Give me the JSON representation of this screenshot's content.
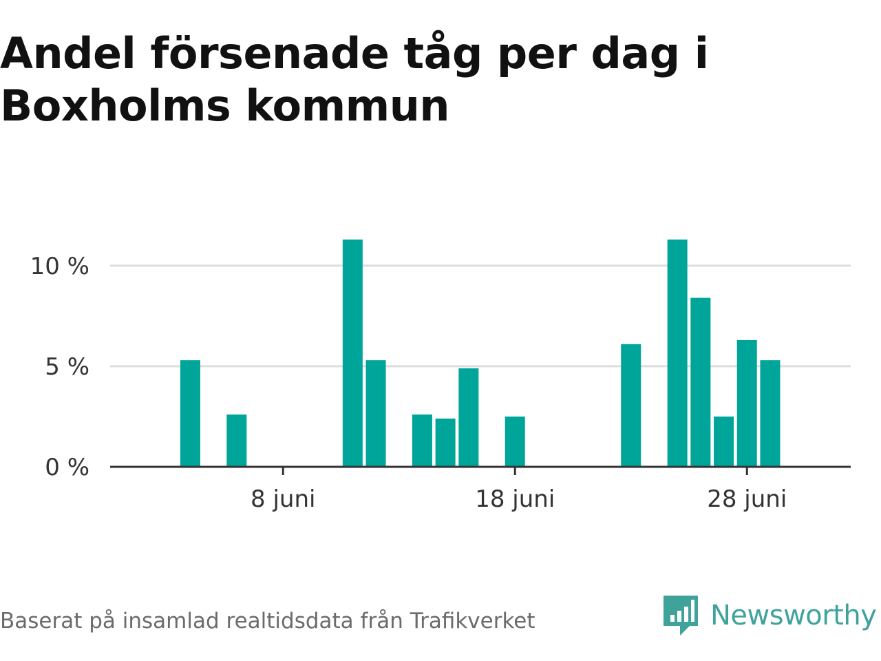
{
  "title": "Andel försenade tåg per dag i Boxholms kommun",
  "source": "Baserat på insamlad realtidsdata från Trafikverket",
  "brand": {
    "name": "Newsworthy",
    "icon": "newsworthy-logo-icon"
  },
  "colors": {
    "bar": "#00a59a",
    "grid": "#dddddd",
    "axis": "#333333",
    "title": "#111111",
    "source": "#6b6b6b",
    "brand": "#3fa39b"
  },
  "chart_data": {
    "type": "bar",
    "title": "Andel försenade tåg per dag i Boxholms kommun",
    "xlabel": "",
    "ylabel": "",
    "x": [
      "1 juni",
      "2 juni",
      "3 juni",
      "4 juni",
      "5 juni",
      "6 juni",
      "7 juni",
      "8 juni",
      "9 juni",
      "10 juni",
      "11 juni",
      "12 juni",
      "13 juni",
      "14 juni",
      "15 juni",
      "16 juni",
      "17 juni",
      "18 juni",
      "19 juni",
      "20 juni",
      "21 juni",
      "22 juni",
      "23 juni",
      "24 juni",
      "25 juni",
      "26 juni",
      "27 juni",
      "28 juni",
      "29 juni",
      "30 juni"
    ],
    "values": [
      0,
      0,
      0,
      5.3,
      0,
      2.6,
      0,
      0,
      0,
      0,
      11.3,
      5.3,
      0,
      2.6,
      2.4,
      4.9,
      0,
      2.5,
      0,
      0,
      0,
      0,
      6.1,
      0,
      11.3,
      8.4,
      2.5,
      6.3,
      5.3,
      0
    ],
    "ylim": [
      0,
      11.5
    ],
    "y_ticks": [
      {
        "value": 0,
        "label": "0 %"
      },
      {
        "value": 5,
        "label": "5 %"
      },
      {
        "value": 10,
        "label": "10 %"
      }
    ],
    "x_ticks": [
      {
        "index": 7,
        "label": "8 juni"
      },
      {
        "index": 17,
        "label": "18 juni"
      },
      {
        "index": 27,
        "label": "28 juni"
      }
    ],
    "grid": true,
    "legend": "none"
  }
}
